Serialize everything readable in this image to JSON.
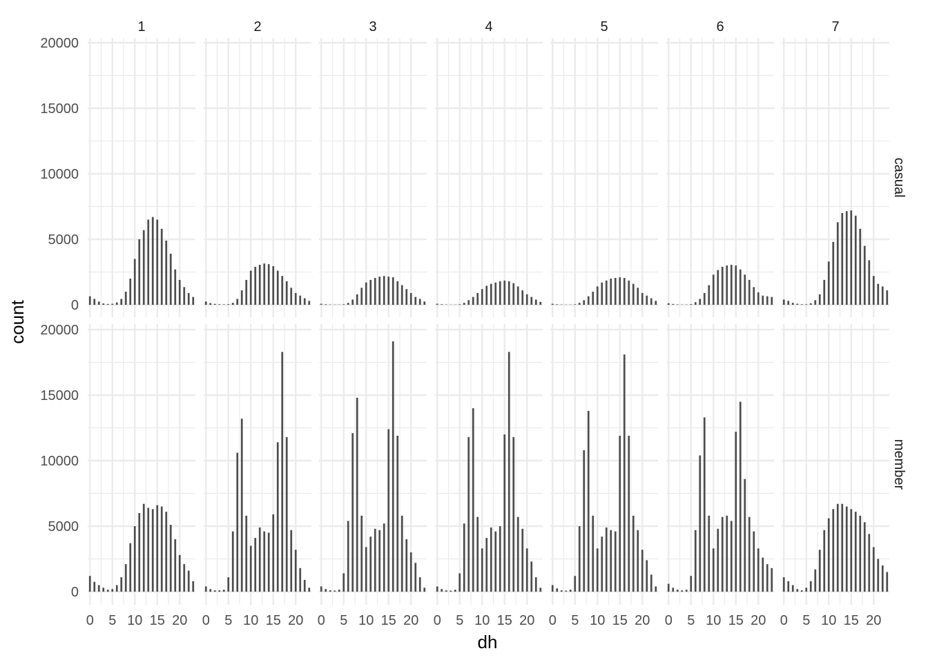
{
  "chart_data": {
    "type": "bar",
    "xlabel": "dh",
    "ylabel": "count",
    "x": [
      0,
      1,
      2,
      3,
      4,
      5,
      6,
      7,
      8,
      9,
      10,
      11,
      12,
      13,
      14,
      15,
      16,
      17,
      18,
      19,
      20,
      21,
      22,
      23
    ],
    "xticks": [
      0,
      5,
      10,
      15,
      20
    ],
    "xlim": [
      -0.5,
      23.5
    ],
    "yticks": [
      0,
      5000,
      10000,
      15000,
      20000
    ],
    "ylim": [
      0,
      20000
    ],
    "grid": true,
    "bar_color": "#4d4d4d",
    "grid_color": "#ebebeb",
    "columns": [
      "1",
      "2",
      "3",
      "4",
      "5",
      "6",
      "7"
    ],
    "rows": [
      "casual",
      "member"
    ],
    "panels": [
      {
        "column": "1",
        "row": "casual",
        "values": [
          650,
          450,
          250,
          100,
          60,
          80,
          180,
          450,
          1000,
          2000,
          3500,
          5000,
          5700,
          6500,
          6700,
          6500,
          5800,
          4900,
          3900,
          2700,
          1900,
          1350,
          900,
          600
        ]
      },
      {
        "column": "2",
        "row": "casual",
        "values": [
          250,
          130,
          70,
          40,
          30,
          50,
          150,
          450,
          1100,
          1900,
          2600,
          2900,
          3050,
          3150,
          3100,
          2950,
          2600,
          2200,
          1800,
          1300,
          900,
          700,
          500,
          300
        ]
      },
      {
        "column": "3",
        "row": "casual",
        "values": [
          80,
          40,
          20,
          15,
          15,
          40,
          150,
          400,
          800,
          1300,
          1700,
          1900,
          2050,
          2150,
          2200,
          2150,
          2100,
          1800,
          1500,
          1200,
          900,
          600,
          450,
          250
        ]
      },
      {
        "column": "4",
        "row": "casual",
        "values": [
          80,
          40,
          20,
          15,
          15,
          40,
          150,
          350,
          600,
          900,
          1200,
          1450,
          1600,
          1700,
          1800,
          1850,
          1800,
          1650,
          1400,
          1100,
          800,
          600,
          400,
          220
        ]
      },
      {
        "column": "5",
        "row": "casual",
        "values": [
          80,
          40,
          20,
          15,
          15,
          40,
          150,
          350,
          650,
          1000,
          1400,
          1700,
          1850,
          2000,
          2050,
          2100,
          2050,
          1850,
          1600,
          1300,
          900,
          700,
          500,
          300
        ]
      },
      {
        "column": "6",
        "row": "casual",
        "values": [
          120,
          60,
          30,
          20,
          20,
          50,
          200,
          450,
          900,
          1500,
          2300,
          2650,
          2900,
          3000,
          3050,
          3000,
          2700,
          2300,
          1900,
          1350,
          950,
          700,
          650,
          600
        ]
      },
      {
        "column": "7",
        "row": "casual",
        "values": [
          400,
          300,
          150,
          80,
          40,
          40,
          120,
          350,
          800,
          1900,
          3300,
          4800,
          6300,
          7000,
          7150,
          7200,
          6800,
          5800,
          4500,
          3400,
          2200,
          1600,
          1400,
          1100
        ]
      },
      {
        "column": "1",
        "row": "member",
        "values": [
          1200,
          750,
          500,
          300,
          150,
          200,
          500,
          1100,
          2100,
          3700,
          5000,
          6000,
          6700,
          6400,
          6300,
          6600,
          6500,
          6100,
          5100,
          4000,
          2800,
          2100,
          1600,
          800
        ]
      },
      {
        "column": "2",
        "row": "member",
        "values": [
          400,
          200,
          100,
          100,
          150,
          1100,
          4600,
          10600,
          13200,
          5800,
          3500,
          4100,
          4900,
          4600,
          4500,
          5900,
          11400,
          18300,
          11800,
          4700,
          3200,
          1800,
          900,
          300
        ]
      },
      {
        "column": "3",
        "row": "member",
        "values": [
          400,
          200,
          100,
          80,
          150,
          1400,
          5400,
          12100,
          14800,
          5800,
          3400,
          4200,
          4800,
          4700,
          5200,
          12400,
          19100,
          11900,
          5800,
          4000,
          3000,
          2200,
          1100,
          300
        ]
      },
      {
        "column": "4",
        "row": "member",
        "values": [
          400,
          200,
          100,
          80,
          150,
          1400,
          5200,
          11800,
          14000,
          5700,
          3300,
          4100,
          4900,
          4600,
          5000,
          12000,
          18300,
          11800,
          5700,
          4800,
          3300,
          2300,
          1100,
          300
        ]
      },
      {
        "column": "5",
        "row": "member",
        "values": [
          500,
          250,
          100,
          80,
          150,
          1200,
          5000,
          10800,
          13800,
          5800,
          3300,
          4200,
          4900,
          4700,
          4600,
          11900,
          18100,
          11900,
          5800,
          4700,
          3200,
          2400,
          1300,
          400
        ]
      },
      {
        "column": "6",
        "row": "member",
        "values": [
          600,
          300,
          150,
          100,
          150,
          1200,
          4700,
          10400,
          13300,
          5800,
          3300,
          4800,
          5700,
          5800,
          5400,
          12200,
          14500,
          8600,
          5700,
          4600,
          3300,
          2600,
          2100,
          1800
        ]
      },
      {
        "column": "7",
        "row": "member",
        "values": [
          1100,
          800,
          500,
          200,
          100,
          300,
          800,
          1700,
          3200,
          4700,
          5600,
          6300,
          6700,
          6700,
          6500,
          6300,
          6100,
          5800,
          5300,
          4400,
          3400,
          2500,
          2000,
          1500
        ]
      }
    ]
  }
}
